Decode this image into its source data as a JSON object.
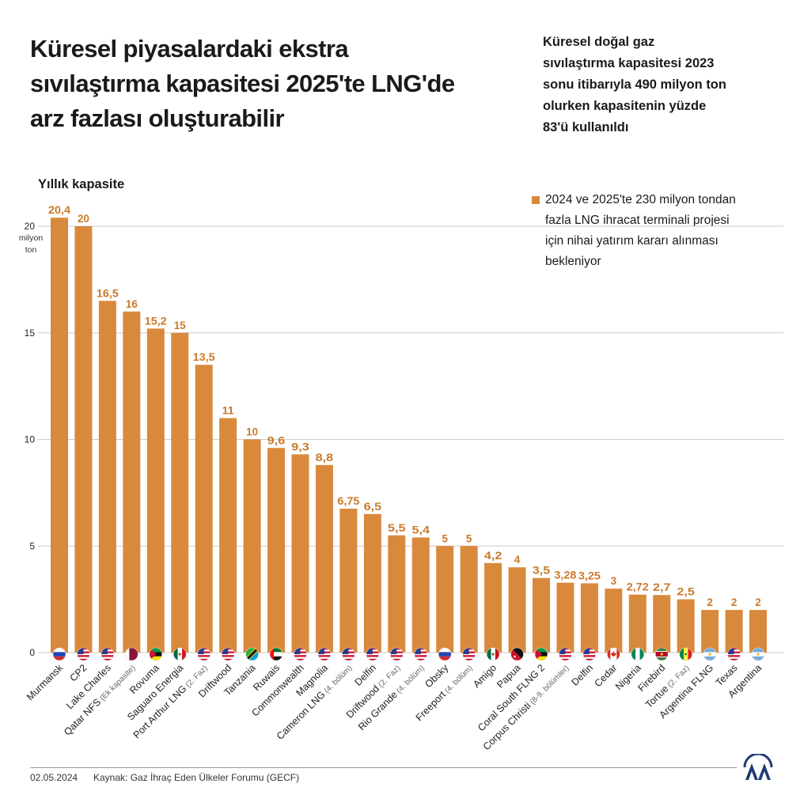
{
  "header": {
    "title_lines": [
      "Küresel piyasalardaki ekstra",
      "sıvılaştırma kapasitesi 2025'te LNG'de",
      "arz fazlası oluşturabilir"
    ],
    "subtitle_lines": [
      "Küresel doğal gaz",
      "sıvılaştırma kapasitesi 2023",
      "sonu itibarıyla 490 milyon ton",
      "olurken kapasitenin yüzde",
      "83'ü kullanıldı"
    ]
  },
  "legend": {
    "lines": [
      "2024 ve 2025'te 230 milyon tondan",
      "fazla LNG ihracat terminali projesi",
      "için nihai yatırım kararı alınması",
      "bekleniyor"
    ]
  },
  "footer": {
    "date": "02.05.2024",
    "source": "Kaynak: Gaz İhraç Eden Ülkeler Forumu (GECF)"
  },
  "logo": {
    "icon": "aa-logo-icon"
  },
  "chart_data": {
    "type": "bar",
    "ylabel": "Yıllık kapasite",
    "yunit": [
      "milyon",
      "ton"
    ],
    "ylim": [
      0,
      22
    ],
    "yticks": [
      0,
      5,
      10,
      15,
      20
    ],
    "ytick_labels": [
      "0",
      "5",
      "10",
      "15",
      "20"
    ],
    "grid": true,
    "legend_position": "top-right",
    "colors": {
      "bar": "#d9893c",
      "value_label": "#c97a2a",
      "grid": "#cccccc"
    },
    "categories": [
      {
        "name": "Murmansk",
        "note": "",
        "flag": "russia"
      },
      {
        "name": "CP2",
        "note": "",
        "flag": "usa"
      },
      {
        "name": "Lake Charles",
        "note": "",
        "flag": "usa"
      },
      {
        "name": "Qatar NFS",
        "note": "(Ek kapasite)",
        "flag": "qatar"
      },
      {
        "name": "Rovuma",
        "note": "",
        "flag": "mozambique"
      },
      {
        "name": "Saguaro Energia",
        "note": "",
        "flag": "mexico"
      },
      {
        "name": "Port Arthur LNG",
        "note": "(2. Faz)",
        "flag": "usa"
      },
      {
        "name": "Driftwood",
        "note": "",
        "flag": "usa"
      },
      {
        "name": "Tanzania",
        "note": "",
        "flag": "tanzania"
      },
      {
        "name": "Ruwais",
        "note": "",
        "flag": "uae"
      },
      {
        "name": "Commonwealth",
        "note": "",
        "flag": "usa"
      },
      {
        "name": "Magnolia",
        "note": "",
        "flag": "usa"
      },
      {
        "name": "Cameron LNG",
        "note": "(4. bölüm)",
        "flag": "usa"
      },
      {
        "name": "Delfin",
        "note": "",
        "flag": "usa"
      },
      {
        "name": "Driftwood",
        "note": "(2. Faz)",
        "flag": "usa"
      },
      {
        "name": "Rio Grande",
        "note": "(4. bölüm)",
        "flag": "usa"
      },
      {
        "name": "Obsky",
        "note": "",
        "flag": "russia"
      },
      {
        "name": "Freeport",
        "note": "(4. bölüm)",
        "flag": "usa"
      },
      {
        "name": "Amigo",
        "note": "",
        "flag": "mexico"
      },
      {
        "name": "Papua",
        "note": "",
        "flag": "png"
      },
      {
        "name": "Coral South FLNG 2",
        "note": "",
        "flag": "mozambique"
      },
      {
        "name": "Corpus Christi",
        "note": "(8-9. bölümler)",
        "flag": "usa"
      },
      {
        "name": "Delfin",
        "note": "",
        "flag": "usa"
      },
      {
        "name": "Cedar",
        "note": "",
        "flag": "canada"
      },
      {
        "name": "Nigeria",
        "note": "",
        "flag": "nigeria"
      },
      {
        "name": "Firebird",
        "note": "",
        "flag": "suriname"
      },
      {
        "name": "Tortue",
        "note": "(2. Faz)",
        "flag": "senegal"
      },
      {
        "name": "Argentina FLNG",
        "note": "",
        "flag": "argentina"
      },
      {
        "name": "Texas",
        "note": "",
        "flag": "usa"
      },
      {
        "name": "Argentina",
        "note": "",
        "flag": "argentina"
      }
    ],
    "values": [
      20.4,
      20,
      16.5,
      16,
      15.2,
      15,
      13.5,
      11,
      10,
      9.6,
      9.3,
      8.8,
      6.75,
      6.5,
      5.5,
      5.4,
      5,
      5,
      4.2,
      4,
      3.5,
      3.28,
      3.25,
      3,
      2.72,
      2.7,
      2.5,
      2,
      2,
      2
    ],
    "value_labels": [
      "20,4",
      "20",
      "16,5",
      "16",
      "15,2",
      "15",
      "13,5",
      "11",
      "10",
      "9,6",
      "9,3",
      "8,8",
      "6,75",
      "6,5",
      "5,5",
      "5,4",
      "5",
      "5",
      "4,2",
      "4",
      "3,5",
      "3,28",
      "3,25",
      "3",
      "2,72",
      "2,7",
      "2,5",
      "2",
      "2",
      "2"
    ]
  }
}
